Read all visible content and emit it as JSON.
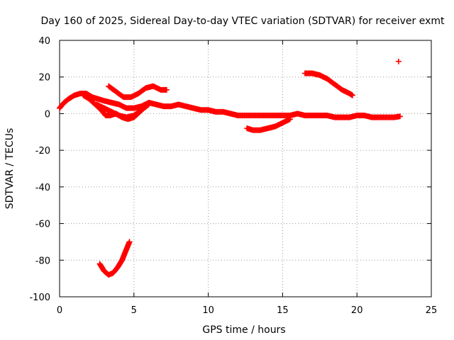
{
  "chart_data": {
    "type": "scatter",
    "title": "Day 160 of 2025, Sidereal Day-to-day VTEC variation (SDTVAR) for receiver exmt",
    "xlabel": "GPS time / hours",
    "ylabel": "SDTVAR / TECUs",
    "xlim": [
      0,
      25
    ],
    "ylim": [
      -100,
      40
    ],
    "xticks": [
      0,
      5,
      10,
      15,
      20,
      25
    ],
    "yticks": [
      -100,
      -80,
      -60,
      -40,
      -20,
      0,
      20,
      40
    ],
    "grid": true,
    "marker": "+",
    "color": "#ff0000",
    "series": [
      {
        "name": "main-track",
        "points": [
          [
            0,
            3
          ],
          [
            0.3,
            6
          ],
          [
            0.6,
            8
          ],
          [
            1,
            10
          ],
          [
            1.4,
            11
          ],
          [
            1.8,
            11
          ],
          [
            2.2,
            9
          ],
          [
            2.6,
            8
          ],
          [
            3,
            7
          ],
          [
            3.5,
            6
          ],
          [
            4,
            5
          ],
          [
            4.5,
            3
          ],
          [
            5,
            3
          ],
          [
            5.5,
            4
          ],
          [
            6,
            6
          ],
          [
            6.5,
            5
          ],
          [
            7,
            4
          ],
          [
            7.5,
            4
          ],
          [
            8,
            5
          ],
          [
            8.5,
            4
          ],
          [
            9,
            3
          ],
          [
            9.5,
            2
          ],
          [
            10,
            2
          ],
          [
            10.5,
            1
          ],
          [
            11,
            1
          ],
          [
            11.5,
            0
          ],
          [
            12,
            -1
          ],
          [
            12.5,
            -1
          ],
          [
            13,
            -1
          ],
          [
            13.5,
            -1
          ],
          [
            14,
            -1
          ],
          [
            14.5,
            -1
          ],
          [
            15,
            -1
          ],
          [
            15.5,
            -1
          ],
          [
            16,
            0
          ],
          [
            16.5,
            -1
          ],
          [
            17,
            -1
          ],
          [
            17.5,
            -1
          ],
          [
            18,
            -1
          ],
          [
            18.5,
            -2
          ],
          [
            19,
            -2
          ],
          [
            19.5,
            -2
          ],
          [
            20,
            -1
          ],
          [
            20.5,
            -1
          ],
          [
            21,
            -2
          ],
          [
            21.5,
            -2
          ],
          [
            22,
            -2
          ],
          [
            22.5,
            -2
          ],
          [
            22.9,
            -1.5
          ]
        ]
      },
      {
        "name": "lower-branch",
        "points": [
          [
            1.6,
            10
          ],
          [
            2,
            8
          ],
          [
            2.4,
            5
          ],
          [
            2.8,
            2
          ],
          [
            3.1,
            -1
          ],
          [
            3.4,
            -1
          ],
          [
            3.8,
            0
          ],
          [
            4.2,
            -2
          ],
          [
            4.6,
            -3
          ],
          [
            5,
            -2
          ],
          [
            5.4,
            1
          ],
          [
            5.8,
            4
          ]
        ]
      },
      {
        "name": "middle-branch",
        "points": [
          [
            2.5,
            5
          ],
          [
            3,
            3
          ],
          [
            3.5,
            1
          ],
          [
            4,
            -1
          ],
          [
            4.5,
            -2
          ],
          [
            5,
            -1
          ],
          [
            5.5,
            2
          ],
          [
            6,
            5
          ]
        ]
      },
      {
        "name": "upper-arc",
        "points": [
          [
            3.3,
            15
          ],
          [
            3.8,
            12
          ],
          [
            4.3,
            9
          ],
          [
            4.8,
            9
          ],
          [
            5.3,
            11
          ],
          [
            5.8,
            14
          ],
          [
            6.3,
            15
          ],
          [
            6.8,
            13
          ],
          [
            7.2,
            13
          ]
        ]
      },
      {
        "name": "mid-dip",
        "points": [
          [
            12.6,
            -8
          ],
          [
            13,
            -9
          ],
          [
            13.5,
            -9
          ],
          [
            14,
            -8
          ],
          [
            14.5,
            -7
          ],
          [
            15,
            -5
          ],
          [
            15.5,
            -3
          ]
        ]
      },
      {
        "name": "high-descent",
        "points": [
          [
            16.5,
            22
          ],
          [
            17,
            22
          ],
          [
            17.5,
            21
          ],
          [
            18,
            19
          ],
          [
            18.5,
            16
          ],
          [
            19,
            13
          ],
          [
            19.5,
            11
          ],
          [
            19.7,
            10
          ]
        ]
      },
      {
        "name": "deep-dip",
        "points": [
          [
            2.7,
            -82
          ],
          [
            3,
            -86
          ],
          [
            3.3,
            -88
          ],
          [
            3.6,
            -87
          ],
          [
            3.9,
            -84
          ],
          [
            4.2,
            -80
          ],
          [
            4.5,
            -74
          ],
          [
            4.7,
            -70
          ]
        ]
      },
      {
        "name": "outlier",
        "points": [
          [
            22.8,
            28.5
          ]
        ]
      }
    ]
  }
}
